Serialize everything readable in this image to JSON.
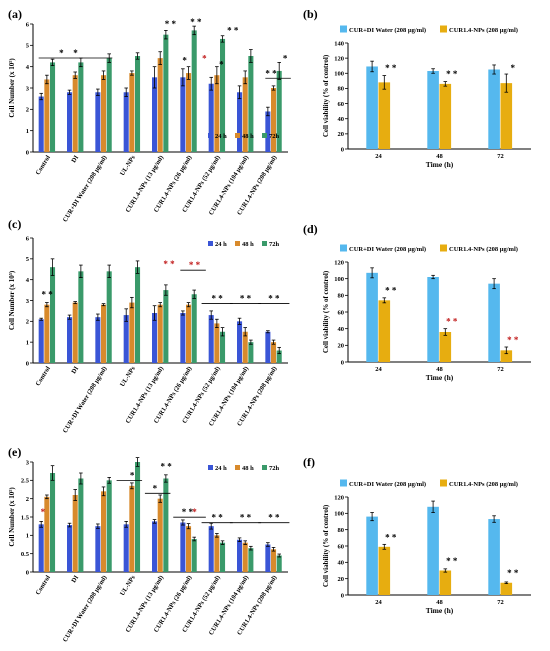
{
  "colors": {
    "h24": "#3a55d6",
    "h48": "#d88a2c",
    "h72": "#3a9a6a",
    "cur_di": "#55b8ee",
    "cur_np": "#e7ad10",
    "sig_black": "#000000",
    "sig_red": "#c01818"
  },
  "chart_data": [
    {
      "id": "a",
      "panel_label": "(a)",
      "type": "bar",
      "ylabel": "Cell Number (x 10⁵)",
      "xlabel": "",
      "ylim": [
        0,
        6
      ],
      "yticks": [
        0,
        1,
        2,
        3,
        4,
        5,
        6
      ],
      "legend": [
        "24 h",
        "48 h",
        "72h"
      ],
      "legend_position": "bottom-right",
      "categories": [
        "Control",
        "DI",
        "CUR+DI Water (208 µg/ml)",
        "UL-NPs",
        "CUR1.4-NPs (13 µg/ml)",
        "CUR1.4-NPs (26 µg/ml)",
        "CUR1.4-NPs (52 µg/ml)",
        "CUR1.4-NPs (104 µg/ml)",
        "CUR1.4-NPs (208 µg/ml)"
      ],
      "series": [
        {
          "name": "24 h",
          "values": [
            2.6,
            2.8,
            2.8,
            2.8,
            3.5,
            3.5,
            3.2,
            2.8,
            1.9
          ],
          "errors": [
            0.15,
            0.1,
            0.15,
            0.2,
            0.5,
            0.4,
            0.3,
            0.3,
            0.2
          ]
        },
        {
          "name": "48 h",
          "values": [
            3.4,
            3.6,
            3.6,
            3.7,
            4.4,
            3.7,
            3.6,
            3.5,
            3.0
          ],
          "errors": [
            0.2,
            0.15,
            0.2,
            0.1,
            0.3,
            0.3,
            0.4,
            0.3,
            0.1
          ]
        },
        {
          "name": "72h",
          "values": [
            4.2,
            4.2,
            4.4,
            4.5,
            5.5,
            5.7,
            5.3,
            4.5,
            3.8
          ],
          "errors": [
            0.15,
            0.2,
            0.2,
            0.15,
            0.2,
            0.2,
            0.15,
            0.3,
            0.4
          ]
        }
      ],
      "annotations": [
        {
          "text": "*",
          "x": 0.5,
          "y": 4.5,
          "color": "black",
          "bracket": [
            0,
            2
          ]
        },
        {
          "text": "*",
          "x": 1.0,
          "y": 4.5,
          "color": "black"
        },
        {
          "text": "* *",
          "x": 4.35,
          "y": 5.85,
          "color": "black"
        },
        {
          "text": "*",
          "x": 4.85,
          "y": 4.15,
          "color": "black"
        },
        {
          "text": "* *",
          "x": 5.25,
          "y": 5.95,
          "color": "black"
        },
        {
          "text": "*",
          "x": 5.55,
          "y": 4.25,
          "color": "red"
        },
        {
          "text": "*",
          "x": 6.15,
          "y": 3.95,
          "color": "black"
        },
        {
          "text": "* *",
          "x": 6.55,
          "y": 5.55,
          "color": "black"
        },
        {
          "text": "* *",
          "x": 7.9,
          "y": 3.55,
          "color": "black",
          "bracket": [
            8.0,
            8.3
          ]
        },
        {
          "text": "*",
          "x": 8.4,
          "y": 4.25,
          "color": "black"
        }
      ]
    },
    {
      "id": "b",
      "panel_label": "(b)",
      "type": "bar",
      "ylabel": "Cell viability  (% of control)",
      "xlabel": "Time (h)",
      "ylim": [
        0,
        140
      ],
      "yticks": [
        0,
        20,
        40,
        60,
        80,
        100,
        120,
        140
      ],
      "legend": [
        "CUR+DI Water (208 µg/ml)",
        "CUR1.4-NPs (208 µg/ml)"
      ],
      "legend_position": "top",
      "categories": [
        "24",
        "48",
        "72"
      ],
      "series": [
        {
          "name": "CUR+DI Water (208 µg/ml)",
          "values": [
            109,
            103,
            105
          ],
          "errors": [
            7,
            3,
            6
          ]
        },
        {
          "name": "CUR1.4-NPs (208 µg/ml)",
          "values": [
            88,
            86,
            87
          ],
          "errors": [
            9,
            3,
            12
          ]
        }
      ],
      "annotations": [
        {
          "text": "* *",
          "x": 0.2,
          "y": 103,
          "color": "black"
        },
        {
          "text": "* *",
          "x": 1.2,
          "y": 95,
          "color": "black"
        },
        {
          "text": "*",
          "x": 2.2,
          "y": 103,
          "color": "black"
        }
      ]
    },
    {
      "id": "c",
      "panel_label": "(c)",
      "type": "bar",
      "ylabel": "Cell Number (x 10⁵)",
      "xlabel": "",
      "ylim": [
        0,
        6
      ],
      "yticks": [
        0,
        1,
        2,
        3,
        4,
        5,
        6
      ],
      "legend": [
        "24 h",
        "48 h",
        "72h"
      ],
      "legend_position": "top-right",
      "categories": [
        "Control",
        "DI",
        "CUR+DI Water (208 µg/ml)",
        "UL-NPs",
        "CUR1.4-NPs (13 µg/ml)",
        "CUR1.4-NPs (26 µg/ml)",
        "CUR1.4-NPs (52 µg/ml)",
        "CUR1.4-NPs (104 µg/ml)",
        "CUR1.4-NPs (208 µg/ml)"
      ],
      "series": [
        {
          "name": "24 h",
          "values": [
            2.1,
            2.2,
            2.2,
            2.3,
            2.4,
            2.4,
            2.3,
            2.0,
            1.5
          ],
          "errors": [
            0.05,
            0.1,
            0.15,
            0.3,
            0.35,
            0.1,
            0.2,
            0.15,
            0.05
          ]
        },
        {
          "name": "48 h",
          "values": [
            2.8,
            2.9,
            2.8,
            2.9,
            2.8,
            2.8,
            1.9,
            1.5,
            1.0
          ],
          "errors": [
            0.1,
            0.05,
            0.05,
            0.25,
            0.1,
            0.1,
            0.2,
            0.2,
            0.1
          ]
        },
        {
          "name": "72h",
          "values": [
            4.6,
            4.4,
            4.4,
            4.6,
            3.5,
            3.3,
            1.5,
            1.0,
            0.6
          ],
          "errors": [
            0.4,
            0.3,
            0.3,
            0.3,
            0.25,
            0.2,
            0.2,
            0.1,
            0.15
          ]
        }
      ],
      "annotations": [
        {
          "text": "* *",
          "x": 0.0,
          "y": 3.15,
          "color": "black"
        },
        {
          "text": "* *",
          "x": 4.3,
          "y": 4.6,
          "color": "red"
        },
        {
          "text": "* *",
          "x": 5.2,
          "y": 4.55,
          "color": "red",
          "bracket": [
            5.0,
            5.3
          ]
        },
        {
          "text": "* *",
          "x": 6.0,
          "y": 2.95,
          "color": "black",
          "bracket": [
            5.75,
            6.25
          ]
        },
        {
          "text": "* *",
          "x": 7.0,
          "y": 2.95,
          "color": "black",
          "bracket": [
            6.75,
            7.25
          ]
        },
        {
          "text": "* *",
          "x": 8.0,
          "y": 2.95,
          "color": "black",
          "bracket": [
            7.75,
            8.25
          ]
        }
      ]
    },
    {
      "id": "d",
      "panel_label": "(d)",
      "type": "bar",
      "ylabel": "Cell viability  (% of control)",
      "xlabel": "Time (h)",
      "ylim": [
        0,
        120
      ],
      "yticks": [
        0,
        20,
        40,
        60,
        80,
        100,
        120
      ],
      "legend": [
        "CUR+DI Water (208 µg/ml)",
        "CUR1.4-NPs (208 µg/ml)"
      ],
      "legend_position": "top",
      "categories": [
        "24",
        "48",
        "72"
      ],
      "series": [
        {
          "name": "CUR+DI Water (208 µg/ml)",
          "values": [
            107,
            102,
            94
          ],
          "errors": [
            6,
            2,
            6
          ]
        },
        {
          "name": "CUR1.4-NPs (208 µg/ml)",
          "values": [
            74,
            36,
            14
          ],
          "errors": [
            3,
            4,
            4
          ]
        }
      ],
      "annotations": [
        {
          "text": "* *",
          "x": 0.2,
          "y": 82,
          "color": "black"
        },
        {
          "text": "* *",
          "x": 1.2,
          "y": 45,
          "color": "red"
        },
        {
          "text": "* *",
          "x": 2.2,
          "y": 23,
          "color": "red"
        }
      ]
    },
    {
      "id": "e",
      "panel_label": "(e)",
      "type": "bar",
      "ylabel": "Cell Number (x 10⁵)",
      "xlabel": "",
      "ylim": [
        0,
        3
      ],
      "yticks": [
        0,
        0.5,
        1,
        1.5,
        2,
        2.5,
        3
      ],
      "yticklabels": [
        "0",
        "0.5",
        "1",
        "1.5",
        "2",
        "2.5",
        "3"
      ],
      "legend": [
        "24 h",
        "48 h",
        "72h"
      ],
      "legend_position": "top-right",
      "categories": [
        "Control",
        "DI",
        "CUR+DI Water (208 µg/ml)",
        "UL-NPs",
        "CUR1.4-NPs (13 µg/ml)",
        "CUR1.4-NPs (26 µg/ml)",
        "CUR1.4-NPs (52 µg/ml)",
        "CUR1.4-NPs (104 µg/ml)",
        "CUR1.4-NPs (208 µg/ml)"
      ],
      "series": [
        {
          "name": "24 h",
          "values": [
            1.3,
            1.28,
            1.25,
            1.3,
            1.38,
            1.35,
            1.25,
            0.88,
            0.75
          ],
          "errors": [
            0.08,
            0.05,
            0.06,
            0.08,
            0.05,
            0.07,
            0.08,
            0.05,
            0.05
          ]
        },
        {
          "name": "48 h",
          "values": [
            2.05,
            2.1,
            2.2,
            2.35,
            2.0,
            1.25,
            1.0,
            0.8,
            0.62
          ],
          "errors": [
            0.05,
            0.15,
            0.12,
            0.08,
            0.1,
            0.07,
            0.05,
            0.05,
            0.05
          ]
        },
        {
          "name": "72h",
          "values": [
            2.7,
            2.55,
            2.5,
            3.0,
            2.55,
            0.9,
            0.8,
            0.65,
            0.45
          ],
          "errors": [
            0.2,
            0.15,
            0.08,
            0.12,
            0.1,
            0.05,
            0.05,
            0.05,
            0.04
          ]
        }
      ],
      "annotations": [
        {
          "text": "*",
          "x": -0.15,
          "y": 1.55,
          "color": "red"
        },
        {
          "text": "*",
          "x": 3.0,
          "y": 2.55,
          "color": "black",
          "bracket": [
            2.75,
            3.05
          ]
        },
        {
          "text": "* *",
          "x": 4.2,
          "y": 2.8,
          "color": "black"
        },
        {
          "text": "*",
          "x": 3.8,
          "y": 2.2,
          "color": "black",
          "bracket": [
            3.75,
            4.05
          ]
        },
        {
          "text": "* *",
          "x": 4.95,
          "y": 1.55,
          "color": "black",
          "bracket": [
            4.75,
            5.3
          ]
        },
        {
          "text": "*",
          "x": 5.2,
          "y": 1.55,
          "color": "red"
        },
        {
          "text": "* *",
          "x": 6.0,
          "y": 1.4,
          "color": "black",
          "bracket": [
            5.75,
            6.25
          ]
        },
        {
          "text": "* *",
          "x": 7.0,
          "y": 1.4,
          "color": "black",
          "bracket": [
            6.75,
            7.25
          ]
        },
        {
          "text": "* *",
          "x": 8.0,
          "y": 1.4,
          "color": "black",
          "bracket": [
            7.75,
            8.25
          ]
        }
      ]
    },
    {
      "id": "f",
      "panel_label": "(f)",
      "type": "bar",
      "ylabel": "Cell viability  (% of control)",
      "xlabel": "Time (h)",
      "ylim": [
        0,
        120
      ],
      "yticks": [
        0,
        20,
        40,
        60,
        80,
        100,
        120
      ],
      "legend": [
        "CUR+DI Water (208 µg/ml)",
        "CUR1.4-NPs (208 µg/ml)"
      ],
      "legend_position": "top",
      "categories": [
        "24",
        "48",
        "72"
      ],
      "series": [
        {
          "name": "CUR+DI Water (208 µg/ml)",
          "values": [
            96,
            108,
            93
          ],
          "errors": [
            5,
            7,
            4
          ]
        },
        {
          "name": "CUR1.4-NPs (208 µg/ml)",
          "values": [
            59,
            30,
            15
          ],
          "errors": [
            3,
            2,
            1
          ]
        }
      ],
      "annotations": [
        {
          "text": "* *",
          "x": 0.2,
          "y": 67,
          "color": "black"
        },
        {
          "text": "* *",
          "x": 1.2,
          "y": 38,
          "color": "black"
        },
        {
          "text": "* *",
          "x": 2.2,
          "y": 23,
          "color": "black"
        }
      ]
    }
  ]
}
